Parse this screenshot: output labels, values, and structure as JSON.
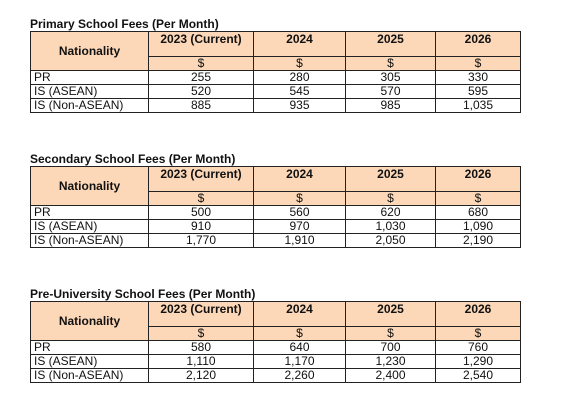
{
  "tables": [
    {
      "title": "Primary School Fees (Per Month)",
      "columns": [
        "Nationality",
        "2023 (Current)",
        "2024",
        "2025",
        "2026"
      ],
      "units": [
        "$",
        "$",
        "$",
        "$"
      ],
      "rows": [
        [
          "PR",
          "255",
          "280",
          "305",
          "330"
        ],
        [
          "IS (ASEAN)",
          "520",
          "545",
          "570",
          "595"
        ],
        [
          "IS (Non-ASEAN)",
          "885",
          "935",
          "985",
          "1,035"
        ]
      ]
    },
    {
      "title": "Secondary School Fees (Per Month)",
      "columns": [
        "Nationality",
        "2023 (Current)",
        "2024",
        "2025",
        "2026"
      ],
      "units": [
        "$",
        "$",
        "$",
        "$"
      ],
      "rows": [
        [
          "PR",
          "500",
          "560",
          "620",
          "680"
        ],
        [
          "IS (ASEAN)",
          "910",
          "970",
          "1,030",
          "1,090"
        ],
        [
          "IS (Non-ASEAN)",
          "1,770",
          "1,910",
          "2,050",
          "2,190"
        ]
      ]
    },
    {
      "title": "Pre-University School Fees (Per Month)",
      "columns": [
        "Nationality",
        "2023 (Current)",
        "2024",
        "2025",
        "2026"
      ],
      "units": [
        "$",
        "$",
        "$",
        "$"
      ],
      "rows": [
        [
          "PR",
          "580",
          "640",
          "700",
          "760"
        ],
        [
          "IS (ASEAN)",
          "1,110",
          "1,170",
          "1,230",
          "1,290"
        ],
        [
          "IS (Non-ASEAN)",
          "2,120",
          "2,260",
          "2,400",
          "2,540"
        ]
      ]
    }
  ]
}
